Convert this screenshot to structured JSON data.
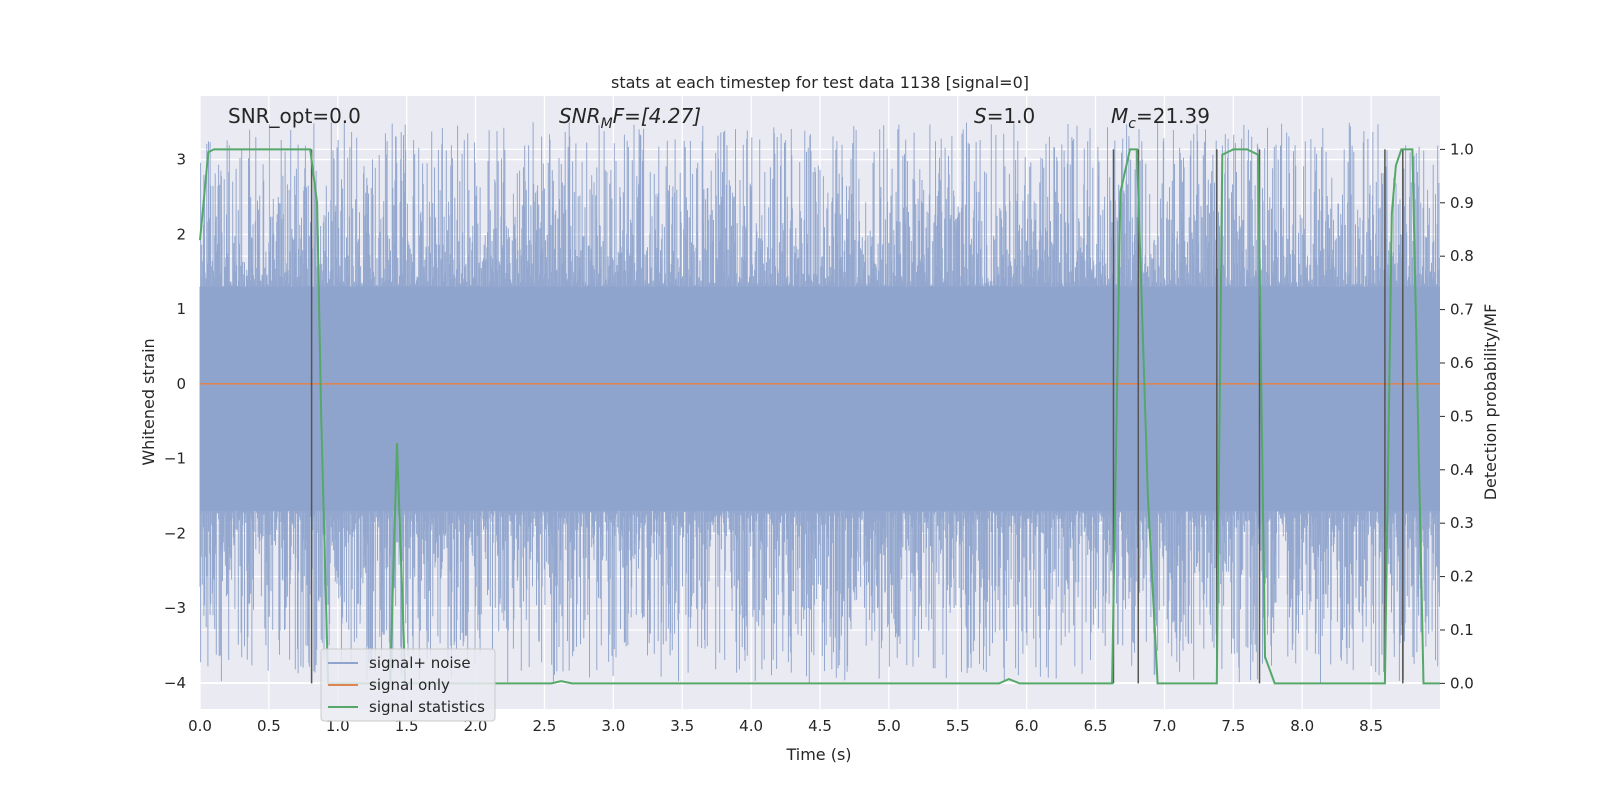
{
  "chart_data": {
    "type": "line",
    "title": "stats at each timestep for test data 1138 [signal=0]",
    "xlabel": "Time (s)",
    "ylabel_left": "Whitened strain",
    "ylabel_right": "Detection probability/MF",
    "xlim": [
      0.0,
      9.0
    ],
    "ylim_left": [
      -4.35,
      3.85
    ],
    "ylim_right": [
      -0.048,
      1.1
    ],
    "x_ticks": [
      "0.0",
      "0.5",
      "1.0",
      "1.5",
      "2.0",
      "2.5",
      "3.0",
      "3.5",
      "4.0",
      "4.5",
      "5.0",
      "5.5",
      "6.0",
      "6.5",
      "7.0",
      "7.5",
      "8.0",
      "8.5"
    ],
    "x_tick_values": [
      0.0,
      0.5,
      1.0,
      1.5,
      2.0,
      2.5,
      3.0,
      3.5,
      4.0,
      4.5,
      5.0,
      5.5,
      6.0,
      6.5,
      7.0,
      7.5,
      8.0,
      8.5
    ],
    "y_ticks_left": [
      "3",
      "2",
      "1",
      "0",
      "−1",
      "−2",
      "−3",
      "−4"
    ],
    "y_tick_values_left": [
      3,
      2,
      1,
      0,
      -1,
      -2,
      -3,
      -4
    ],
    "y_ticks_right": [
      "1.0",
      "0.9",
      "0.8",
      "0.7",
      "0.6",
      "0.5",
      "0.4",
      "0.3",
      "0.2",
      "0.1",
      "0.0"
    ],
    "y_tick_values_right": [
      1.0,
      0.9,
      0.8,
      0.7,
      0.6,
      0.5,
      0.4,
      0.3,
      0.2,
      0.1,
      0.0
    ],
    "grid": true,
    "legend_position": "lower-left",
    "annotations": {
      "snr_opt": "SNR_opt=0.0",
      "snr_mf_base": "SNR",
      "snr_mf_sub": "M",
      "snr_mf_rest": "F=[4.27]",
      "s_base": "S",
      "s_rest": "=1.0",
      "mc_base": "M",
      "mc_sub": "c",
      "mc_rest": "=21.39"
    },
    "series": [
      {
        "name": "signal+ noise",
        "color": "#8fa4cc",
        "axis": "left",
        "description_range": [
          -4.0,
          3.5
        ],
        "core_band": [
          -1.7,
          1.3
        ]
      },
      {
        "name": "signal only",
        "color": "#dd8452",
        "axis": "left",
        "x": [
          0.0,
          9.0
        ],
        "y": [
          0.0,
          0.0
        ]
      },
      {
        "name": "signal statistics",
        "color": "#55a868",
        "axis": "right",
        "x": [
          0.0,
          0.06,
          0.1,
          0.2,
          0.5,
          0.8,
          0.85,
          0.88,
          0.93,
          1.0,
          1.38,
          1.43,
          1.49,
          1.55,
          2.55,
          2.62,
          2.7,
          5.8,
          5.87,
          5.95,
          6.62,
          6.68,
          6.75,
          6.8,
          6.88,
          6.95,
          7.35,
          7.38,
          7.42,
          7.5,
          7.6,
          7.68,
          7.73,
          7.8,
          8.55,
          8.6,
          8.65,
          8.68,
          8.72,
          8.8,
          8.88,
          9.0
        ],
        "y": [
          0.83,
          0.995,
          1.0,
          1.0,
          1.0,
          1.0,
          0.9,
          0.5,
          0.0,
          0.0,
          0.0,
          0.45,
          0.0,
          0.0,
          0.0,
          0.004,
          0.0,
          0.0,
          0.008,
          0.0,
          0.0,
          0.92,
          1.0,
          1.0,
          0.35,
          0.0,
          0.0,
          0.0,
          0.99,
          1.0,
          1.0,
          0.99,
          0.05,
          0.0,
          0.0,
          0.0,
          0.88,
          0.97,
          1.0,
          1.0,
          0.0,
          0.0
        ]
      }
    ],
    "vertical_markers": [
      {
        "x": 0.81,
        "y_top": 1.0
      },
      {
        "x": 6.63,
        "y_top": 1.0
      },
      {
        "x": 6.81,
        "y_top": 1.0
      },
      {
        "x": 7.38,
        "y_top": 1.0
      },
      {
        "x": 7.69,
        "y_top": 1.0
      },
      {
        "x": 8.6,
        "y_top": 1.0
      },
      {
        "x": 8.73,
        "y_top": 1.0
      }
    ]
  }
}
